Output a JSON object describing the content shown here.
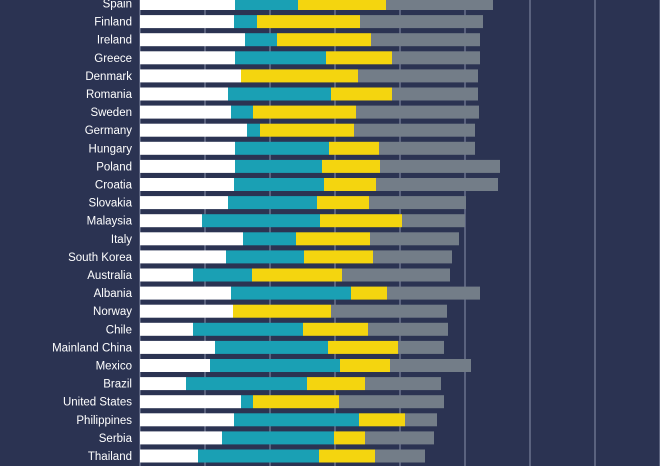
{
  "chart_data": {
    "type": "bar",
    "orientation": "horizontal",
    "stacked": true,
    "title": "",
    "xlabel": "",
    "ylabel": "",
    "xlim": [
      0,
      520
    ],
    "grid": true,
    "legend": "none",
    "categories": [
      "Spain",
      "Finland",
      "Ireland",
      "Greece",
      "Denmark",
      "Romania",
      "Sweden",
      "Germany",
      "Hungary",
      "Poland",
      "Croatia",
      "Slovakia",
      "Malaysia",
      "Italy",
      "South Korea",
      "Australia",
      "Albania",
      "Norway",
      "Chile",
      "Mainland China",
      "Mexico",
      "Brazil",
      "United States",
      "Philippines",
      "Serbia",
      "Thailand"
    ],
    "series": [
      {
        "color": "#ffffff",
        "values": [
          95,
          94,
          105,
          95,
          101,
          88,
          91,
          107,
          95,
          95,
          94,
          88,
          62,
          103,
          86,
          53,
          91,
          93,
          53,
          75,
          70,
          46,
          101,
          94,
          82,
          58
        ]
      },
      {
        "color": "#1aa0b4",
        "values": [
          63,
          23,
          32,
          91,
          0,
          103,
          22,
          13,
          94,
          87,
          90,
          89,
          118,
          53,
          78,
          59,
          120,
          0,
          110,
          113,
          130,
          121,
          12,
          125,
          112,
          121
        ]
      },
      {
        "color": "#f4d50f",
        "values": [
          88,
          103,
          94,
          66,
          117,
          61,
          103,
          94,
          50,
          58,
          52,
          52,
          82,
          74,
          69,
          90,
          36,
          98,
          65,
          70,
          50,
          58,
          86,
          46,
          31,
          56
        ]
      },
      {
        "color": "#737d88",
        "values": [
          107,
          123,
          109,
          88,
          120,
          86,
          123,
          121,
          96,
          120,
          122,
          97,
          63,
          89,
          79,
          108,
          93,
          116,
          80,
          46,
          81,
          76,
          105,
          32,
          69,
          50
        ]
      }
    ]
  }
}
